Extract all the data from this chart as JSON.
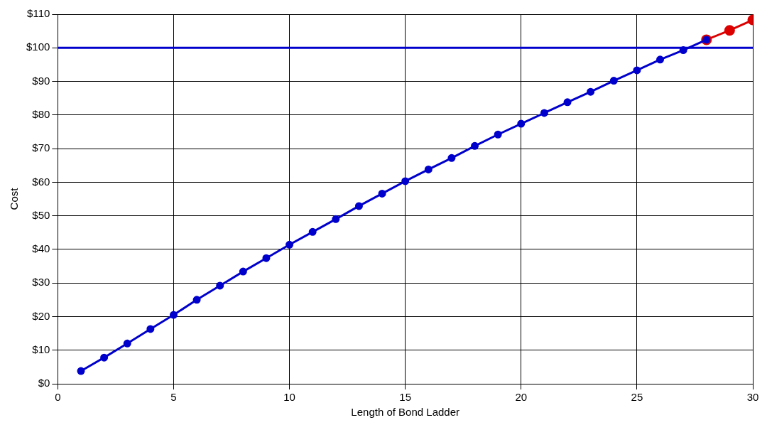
{
  "chart_data": {
    "type": "line",
    "xlabel": "Length of Bond Ladder",
    "ylabel": "Cost",
    "series": [
      {
        "color": "#0000cc",
        "x": [
          1,
          2,
          3,
          4,
          5,
          6,
          7,
          8,
          9,
          10,
          11,
          12,
          13,
          14,
          15,
          16,
          17,
          18,
          19,
          20,
          21,
          22,
          23,
          24,
          25,
          26,
          27,
          28
        ],
        "values": [
          3.8,
          7.8,
          12.0,
          16.3,
          20.5,
          25.0,
          29.2,
          33.4,
          37.4,
          41.4,
          45.2,
          49.0,
          52.9,
          56.6,
          60.3,
          63.8,
          67.2,
          70.8,
          74.2,
          77.4,
          80.6,
          83.8,
          86.9,
          90.2,
          93.3,
          96.5,
          99.3,
          102.4
        ]
      },
      {
        "color": "#dd0000",
        "x": [
          28,
          29,
          30
        ],
        "values": [
          102.4,
          105.2,
          108.3
        ]
      }
    ],
    "xlim": [
      0,
      30
    ],
    "xticks": [
      0,
      5,
      10,
      15,
      20,
      25,
      30
    ],
    "ylim": [
      0,
      110
    ],
    "yticks": [
      {
        "value": 0,
        "label": "$0"
      },
      {
        "value": 10,
        "label": "$10"
      },
      {
        "value": 20,
        "label": "$20"
      },
      {
        "value": 30,
        "label": "$30"
      },
      {
        "value": 40,
        "label": "$40"
      },
      {
        "value": 50,
        "label": "$50"
      },
      {
        "value": 60,
        "label": "$60"
      },
      {
        "value": 70,
        "label": "$70"
      },
      {
        "value": 80,
        "label": "$80"
      },
      {
        "value": 90,
        "label": "$90"
      },
      {
        "value": 100,
        "label": "$100"
      },
      {
        "value": 110,
        "label": "$110"
      }
    ],
    "ref_lines": [
      {
        "axis": "y",
        "value": 100,
        "color": "#0000cc"
      }
    ],
    "grid": true,
    "marker": "circle",
    "line_style": "solid",
    "legend": false
  }
}
